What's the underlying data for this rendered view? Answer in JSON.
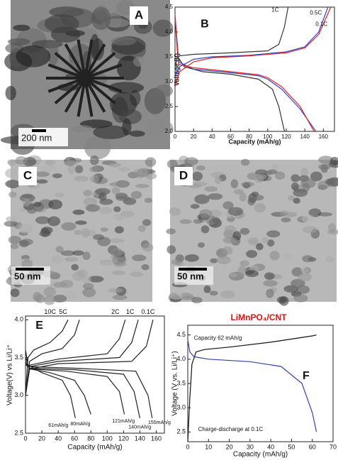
{
  "panels": [
    {
      "label": "A",
      "scale_bar": "200 nm"
    },
    {
      "label": "C",
      "scale_bar": "50 nm"
    },
    {
      "label": "D",
      "scale_bar": "50 nm"
    }
  ],
  "chart_data": [
    {
      "type": "line",
      "panel": "B",
      "xlabel": "Capacity (mAh/g)",
      "ylabel": "Voltage (V)",
      "xlim": [
        0,
        172
      ],
      "xticks": [
        0,
        20,
        40,
        60,
        80,
        100,
        120,
        140,
        160
      ],
      "ylim": [
        2,
        4.5
      ],
      "yticks": [
        {
          "value": 2,
          "label": "2.0"
        },
        2.5,
        {
          "value": 3,
          "label": "3.0"
        },
        3.5,
        {
          "value": 4,
          "label": "4.0"
        },
        4.5
      ],
      "series": [
        {
          "name": "1C",
          "color": "#333333",
          "x": [
            0,
            2,
            5,
            20,
            60,
            100,
            112,
            118,
            122,
            null,
            0,
            3,
            10,
            30,
            60,
            90,
            105,
            112,
            118
          ],
          "values": [
            3.3,
            3.45,
            3.52,
            3.55,
            3.58,
            3.62,
            3.75,
            4.1,
            4.5,
            null,
            4.3,
            3.5,
            3.3,
            3.2,
            3.15,
            3.05,
            2.85,
            2.5,
            2.0
          ]
        },
        {
          "name": "0.5C",
          "color": "#3344cc",
          "x": [
            0,
            5,
            20,
            40,
            80,
            120,
            140,
            155,
            165,
            null,
            0,
            4,
            20,
            60,
            90,
            100,
            115,
            135,
            152
          ],
          "values": [
            3.1,
            3.3,
            3.45,
            3.5,
            3.53,
            3.6,
            3.7,
            4.0,
            4.5,
            null,
            4.35,
            3.4,
            3.25,
            3.18,
            3.12,
            3.05,
            2.85,
            2.45,
            2.0
          ]
        },
        {
          "name": "0.1C",
          "color": "#dd2222",
          "x": [
            0,
            5,
            20,
            40,
            80,
            120,
            140,
            155,
            168,
            null,
            0,
            4,
            20,
            60,
            90,
            100,
            115,
            135,
            150
          ],
          "values": [
            2.9,
            3.2,
            3.4,
            3.48,
            3.52,
            3.58,
            3.68,
            3.95,
            4.5,
            null,
            4.3,
            3.35,
            3.28,
            3.2,
            3.14,
            3.08,
            2.9,
            2.5,
            2.0
          ]
        }
      ]
    },
    {
      "type": "line",
      "panel": "E",
      "xlabel": "Capacity (mAh/g)",
      "ylabel": "Voltage(V) vs Li/Li⁺",
      "xlim": [
        0,
        170
      ],
      "xticks": [
        0,
        20,
        40,
        60,
        80,
        100,
        120,
        140,
        160
      ],
      "ylim": [
        2.5,
        4.05
      ],
      "yticks": [
        2.5,
        {
          "value": 3,
          "label": "3.0"
        },
        3.5,
        {
          "value": 4,
          "label": "4.0"
        }
      ],
      "series": [
        {
          "name": "10C",
          "label": "61mAh/g",
          "color": "#222222",
          "x": [
            0,
            3,
            10,
            30,
            45,
            52,
            null,
            0,
            3,
            20,
            45,
            55,
            61
          ],
          "values": [
            3.0,
            3.5,
            3.6,
            3.7,
            3.85,
            4.0,
            null,
            3.6,
            3.4,
            3.3,
            3.2,
            3.0,
            2.7
          ]
        },
        {
          "name": "5C",
          "label": "80mAh/g",
          "color": "#222222",
          "x": [
            0,
            5,
            20,
            45,
            60,
            66,
            null,
            0,
            5,
            30,
            60,
            72,
            80
          ],
          "values": [
            3.0,
            3.45,
            3.55,
            3.62,
            3.8,
            4.0,
            null,
            3.5,
            3.35,
            3.3,
            3.2,
            3.0,
            2.75
          ]
        },
        {
          "name": "2C",
          "label": "121mAh/g",
          "color": "#222222",
          "x": [
            0,
            5,
            40,
            100,
            115,
            122,
            null,
            0,
            5,
            50,
            100,
            115,
            121
          ],
          "values": [
            3.0,
            3.4,
            3.48,
            3.55,
            3.75,
            4.0,
            null,
            3.45,
            3.35,
            3.32,
            3.25,
            3.05,
            2.75
          ]
        },
        {
          "name": "1C",
          "label": "140mAh/g",
          "color": "#222222",
          "x": [
            0,
            5,
            40,
            115,
            130,
            138,
            null,
            0,
            5,
            60,
            120,
            133,
            140
          ],
          "values": [
            3.0,
            3.38,
            3.45,
            3.5,
            3.7,
            4.0,
            null,
            3.42,
            3.36,
            3.34,
            3.28,
            3.05,
            2.7
          ]
        },
        {
          "name": "0.1C",
          "label": "155mAh/g",
          "color": "#222222",
          "x": [
            0,
            5,
            40,
            130,
            148,
            156,
            null,
            0,
            5,
            60,
            135,
            150,
            155
          ],
          "values": [
            3.0,
            3.35,
            3.42,
            3.45,
            3.65,
            4.0,
            null,
            3.4,
            3.38,
            3.36,
            3.32,
            3.0,
            2.7
          ]
        }
      ]
    },
    {
      "type": "line",
      "panel": "F",
      "title": "LiMnPO₄/CNT",
      "xlabel": "Capacity (mAh/g)",
      "ylabel": "Voltage (V vs. Li/Li⁺)",
      "annotations": [
        "Capacity 62 mAh/g",
        "Charge-discharge at 0.1C"
      ],
      "xlim": [
        0,
        70
      ],
      "xticks": [
        0,
        10,
        20,
        30,
        40,
        50,
        60,
        70
      ],
      "ylim": [
        2.3,
        4.7
      ],
      "yticks": [
        2.5,
        {
          "value": 3,
          "label": "3.0"
        },
        3.5,
        {
          "value": 4,
          "label": "4.0"
        },
        4.5
      ],
      "series": [
        {
          "color": "#111111",
          "x": [
            0,
            1,
            2,
            4,
            8,
            20,
            40,
            60,
            62
          ],
          "values": [
            2.3,
            3.2,
            3.9,
            4.15,
            4.2,
            4.25,
            4.35,
            4.48,
            4.5
          ]
        },
        {
          "color": "#3344aa",
          "x": [
            0,
            1,
            3,
            10,
            30,
            45,
            55,
            60,
            62
          ],
          "values": [
            4.4,
            4.15,
            4.05,
            4.0,
            3.95,
            3.85,
            3.5,
            2.9,
            2.5
          ]
        }
      ]
    }
  ]
}
